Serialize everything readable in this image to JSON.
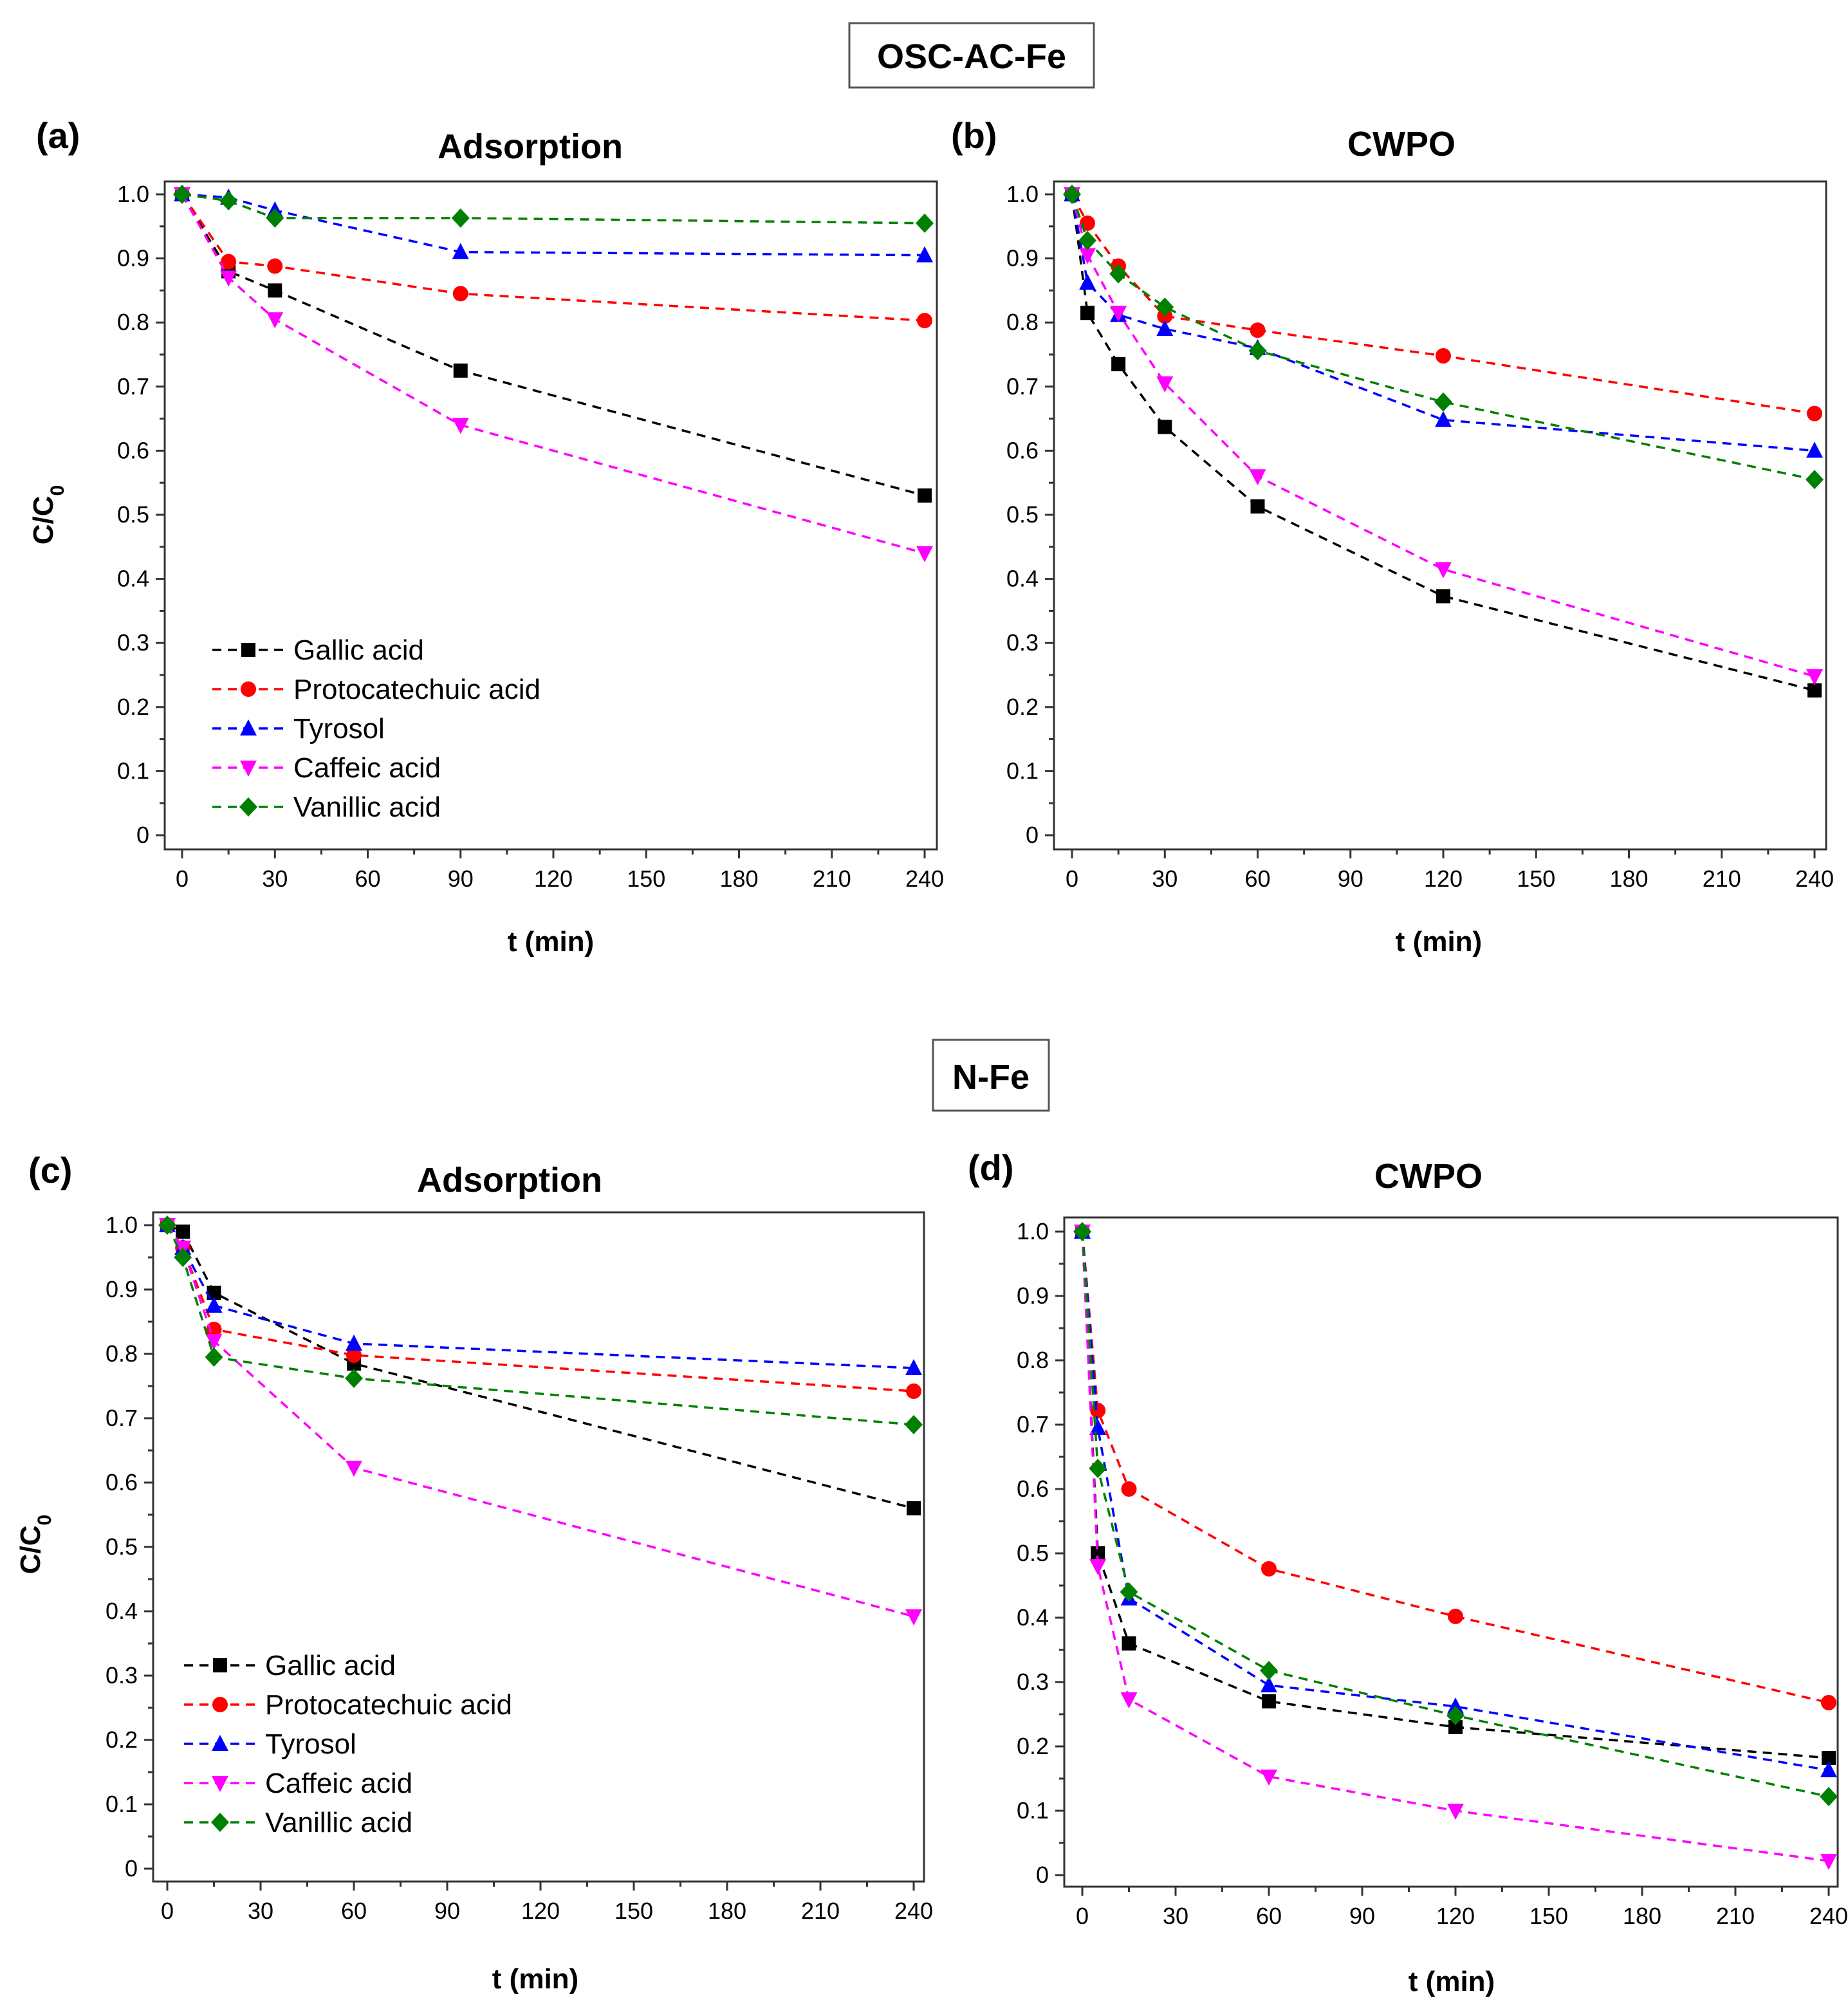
{
  "figure": {
    "group_titles": [
      "OSC-AC-Fe",
      "N-Fe"
    ]
  },
  "colors": {
    "Gallic acid": "#000000",
    "Protocatechuic acid": "#ff0000",
    "Tyrosol": "#0000ff",
    "Caffeic acid": "#ff00ff",
    "Vanillic acid": "#008000"
  },
  "markers": {
    "Gallic acid": "square",
    "Protocatechuic acid": "circle",
    "Tyrosol": "triangle-up",
    "Caffeic acid": "triangle-down",
    "Vanillic acid": "diamond"
  },
  "chart_data": [
    {
      "type": "line",
      "panel": "(a)",
      "group": "OSC-AC-Fe",
      "title": "Adsorption",
      "xlabel": "t (min)",
      "ylabel": "C/C0",
      "xlim": [
        0,
        240
      ],
      "ylim": [
        0,
        1.0
      ],
      "xticks": [
        "0",
        "30",
        "60",
        "90",
        "120",
        "150",
        "180",
        "210",
        "240"
      ],
      "yticks": [
        "0",
        "0.1",
        "0.2",
        "0.3",
        "0.4",
        "0.5",
        "0.6",
        "0.7",
        "0.8",
        "0.9",
        "1.0"
      ],
      "legend": "bottom-left",
      "x": [
        0,
        15,
        30,
        90,
        240
      ],
      "series": [
        {
          "name": "Gallic acid",
          "values": [
            1.0,
            0.88,
            0.85,
            0.725,
            0.53
          ]
        },
        {
          "name": "Protocatechuic acid",
          "values": [
            1.0,
            0.895,
            0.888,
            0.845,
            0.803
          ]
        },
        {
          "name": "Tyrosol",
          "values": [
            1.0,
            0.995,
            0.975,
            0.91,
            0.905
          ]
        },
        {
          "name": "Caffeic acid",
          "values": [
            1.0,
            0.87,
            0.805,
            0.64,
            0.44
          ]
        },
        {
          "name": "Vanillic acid",
          "values": [
            1.0,
            0.99,
            0.963,
            0.963,
            0.955
          ]
        }
      ]
    },
    {
      "type": "line",
      "panel": "(b)",
      "group": "OSC-AC-Fe",
      "title": "CWPO",
      "xlabel": "t (min)",
      "ylabel": "",
      "xlim": [
        0,
        240
      ],
      "ylim": [
        0,
        1.0
      ],
      "xticks": [
        "0",
        "30",
        "60",
        "90",
        "120",
        "150",
        "180",
        "210",
        "240"
      ],
      "yticks": [
        "0",
        "0.1",
        "0.2",
        "0.3",
        "0.4",
        "0.5",
        "0.6",
        "0.7",
        "0.8",
        "0.9",
        "1.0"
      ],
      "x": [
        0,
        5,
        15,
        30,
        60,
        120,
        240
      ],
      "series": [
        {
          "name": "Gallic acid",
          "values": [
            1.0,
            0.815,
            0.735,
            0.637,
            0.513,
            0.373,
            0.226
          ]
        },
        {
          "name": "Protocatechuic acid",
          "values": [
            1.0,
            0.955,
            0.888,
            0.81,
            0.788,
            0.748,
            0.658
          ]
        },
        {
          "name": "Tyrosol",
          "values": [
            1.0,
            0.862,
            0.812,
            0.79,
            0.76,
            0.648,
            0.6
          ]
        },
        {
          "name": "Caffeic acid",
          "values": [
            1.0,
            0.905,
            0.815,
            0.705,
            0.56,
            0.415,
            0.248
          ]
        },
        {
          "name": "Vanillic acid",
          "values": [
            1.0,
            0.928,
            0.876,
            0.824,
            0.756,
            0.676,
            0.555
          ]
        }
      ]
    },
    {
      "type": "line",
      "panel": "(c)",
      "group": "N-Fe",
      "title": "Adsorption",
      "xlabel": "t (min)",
      "ylabel": "C/C0",
      "xlim": [
        0,
        240
      ],
      "ylim": [
        0,
        1.0
      ],
      "xticks": [
        "0",
        "30",
        "60",
        "90",
        "120",
        "150",
        "180",
        "210",
        "240"
      ],
      "yticks": [
        "0",
        "0.1",
        "0.2",
        "0.3",
        "0.4",
        "0.5",
        "0.6",
        "0.7",
        "0.8",
        "0.9",
        "1.0"
      ],
      "legend": "bottom-left",
      "x": [
        0,
        5,
        15,
        60,
        240
      ],
      "series": [
        {
          "name": "Gallic acid",
          "values": [
            1.0,
            0.99,
            0.895,
            0.785,
            0.56
          ]
        },
        {
          "name": "Protocatechuic acid",
          "values": [
            1.0,
            0.965,
            0.838,
            0.798,
            0.742
          ]
        },
        {
          "name": "Tyrosol",
          "values": [
            1.0,
            0.965,
            0.875,
            0.816,
            0.778
          ]
        },
        {
          "name": "Caffeic acid",
          "values": [
            1.0,
            0.965,
            0.82,
            0.623,
            0.392
          ]
        },
        {
          "name": "Vanillic acid",
          "values": [
            1.0,
            0.95,
            0.795,
            0.762,
            0.69
          ]
        }
      ]
    },
    {
      "type": "line",
      "panel": "(d)",
      "group": "N-Fe",
      "title": "CWPO",
      "xlabel": "t (min)",
      "ylabel": "",
      "xlim": [
        0,
        240
      ],
      "ylim": [
        0,
        1.0
      ],
      "xticks": [
        "0",
        "30",
        "60",
        "90",
        "120",
        "150",
        "180",
        "210",
        "240"
      ],
      "yticks": [
        "0",
        "0.1",
        "0.2",
        "0.3",
        "0.4",
        "0.5",
        "0.6",
        "0.7",
        "0.8",
        "0.9",
        "1.0"
      ],
      "x": [
        0,
        5,
        15,
        60,
        120,
        240
      ],
      "series": [
        {
          "name": "Gallic acid",
          "values": [
            1.0,
            0.5,
            0.36,
            0.27,
            0.23,
            0.182
          ]
        },
        {
          "name": "Protocatechuic acid",
          "values": [
            1.0,
            0.722,
            0.6,
            0.476,
            0.402,
            0.268
          ]
        },
        {
          "name": "Tyrosol",
          "values": [
            1.0,
            0.695,
            0.43,
            0.295,
            0.262,
            0.163
          ]
        },
        {
          "name": "Caffeic acid",
          "values": [
            1.0,
            0.48,
            0.273,
            0.153,
            0.1,
            0.022
          ]
        },
        {
          "name": "Vanillic acid",
          "values": [
            1.0,
            0.632,
            0.44,
            0.318,
            0.248,
            0.122
          ]
        }
      ]
    }
  ]
}
